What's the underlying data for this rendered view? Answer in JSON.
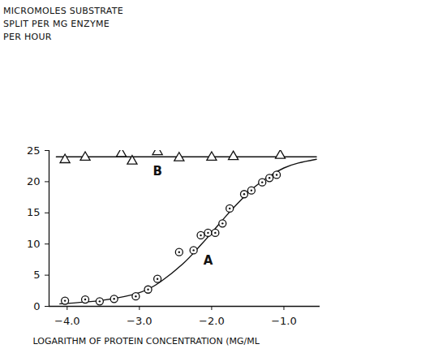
{
  "chart_data": {
    "type": "scatter",
    "y_label": [
      "MICROMOLES SUBSTRATE",
      "SPLIT PER MG ENZYME",
      "PER HOUR"
    ],
    "x_label": "LOGARITHM OF PROTEIN CONCENTRATION (MG/ML",
    "xlim": [
      -4.25,
      -0.5
    ],
    "xticks": [
      -4,
      -3,
      -2,
      -1
    ],
    "ylim": [
      0,
      25
    ],
    "yticks": [
      0,
      5,
      10,
      15,
      20,
      25
    ],
    "grid": false,
    "series": [
      {
        "name": "A",
        "color": "#111111",
        "marker": "circle",
        "x": [
          -4.03,
          -3.75,
          -3.55,
          -3.35,
          -3.05,
          -2.88,
          -2.75,
          -2.45,
          -2.25,
          -2.15,
          -2.05,
          -1.95,
          -1.85,
          -1.75,
          -1.55,
          -1.45,
          -1.3,
          -1.2,
          -1.1
        ],
        "values": [
          0.9,
          1.1,
          0.8,
          1.2,
          1.6,
          2.7,
          4.4,
          8.7,
          9.0,
          11.4,
          11.8,
          11.8,
          13.3,
          15.7,
          18.0,
          18.6,
          19.9,
          20.6,
          21.1
        ],
        "curve": {
          "line_style": "solid",
          "x": [
            -4.1,
            -3.5,
            -3.0,
            -2.7,
            -2.4,
            -2.2,
            -2.0,
            -1.8,
            -1.6,
            -1.4,
            -1.2,
            -1.0,
            -0.8,
            -0.55
          ],
          "values": [
            0.4,
            1.0,
            2.2,
            4.0,
            6.8,
            9.2,
            11.8,
            14.5,
            17.0,
            19.2,
            20.9,
            22.2,
            23.0,
            23.6
          ]
        }
      },
      {
        "name": "B",
        "color": "#111111",
        "marker": "triangle",
        "x": [
          -4.03,
          -3.75,
          -3.25,
          -3.1,
          -2.75,
          -2.45,
          -2.0,
          -1.7,
          -1.05
        ],
        "values": [
          23.5,
          23.9,
          24.5,
          23.3,
          24.8,
          23.8,
          23.9,
          24.0,
          24.2
        ],
        "curve": {
          "line_style": "solid",
          "x": [
            -4.15,
            -0.55
          ],
          "values": [
            24.0,
            24.0
          ]
        }
      }
    ],
    "annotations": [
      {
        "text": "A",
        "x": -2.05,
        "y": 7.3
      },
      {
        "text": "B",
        "x": -2.75,
        "y": 21.6
      }
    ]
  }
}
